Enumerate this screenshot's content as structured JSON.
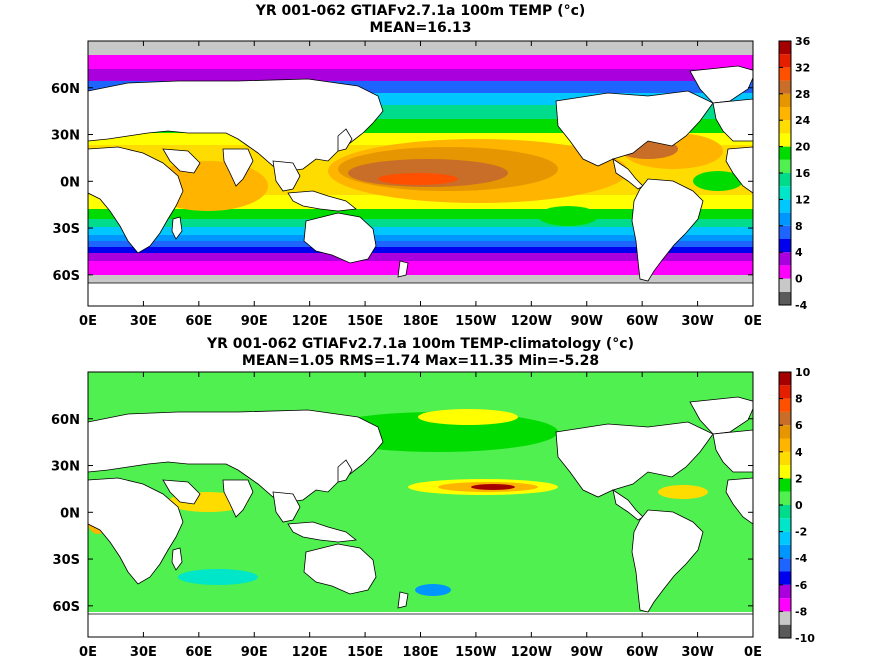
{
  "chart_data": [
    {
      "type": "heatmap",
      "title": "YR 001-062 GTIAFv2.7.1a 100m TEMP",
      "units": "(°c)",
      "subtitle": "MEAN=16.13",
      "x_ticks": [
        "0E",
        "30E",
        "60E",
        "90E",
        "120E",
        "150E",
        "180E",
        "150W",
        "120W",
        "90W",
        "60W",
        "30W",
        "0E"
      ],
      "y_ticks": [
        "60N",
        "30N",
        "0N",
        "30S",
        "60S"
      ],
      "xlim": [
        0,
        360
      ],
      "ylim": [
        -80,
        90
      ],
      "colorbar": {
        "ticks": [
          "36",
          "32",
          "28",
          "24",
          "20",
          "16",
          "12",
          "8",
          "4",
          "0",
          "-4"
        ],
        "range": [
          -4,
          36
        ],
        "bins": [
          {
            "from": -4,
            "to": -2,
            "color": "#5a5a5a"
          },
          {
            "from": -2,
            "to": 0,
            "color": "#c8c8c8"
          },
          {
            "from": 0,
            "to": 2,
            "color": "#ff00ff"
          },
          {
            "from": 2,
            "to": 4,
            "color": "#aa00dd"
          },
          {
            "from": 4,
            "to": 6,
            "color": "#0000ee"
          },
          {
            "from": 6,
            "to": 8,
            "color": "#1e64ff"
          },
          {
            "from": 8,
            "to": 10,
            "color": "#0096ff"
          },
          {
            "from": 10,
            "to": 12,
            "color": "#00c8ff"
          },
          {
            "from": 12,
            "to": 14,
            "color": "#00e6c8"
          },
          {
            "from": 14,
            "to": 16,
            "color": "#00dc8c"
          },
          {
            "from": 16,
            "to": 18,
            "color": "#50f050"
          },
          {
            "from": 18,
            "to": 20,
            "color": "#00dc00"
          },
          {
            "from": 20,
            "to": 22,
            "color": "#ffff00"
          },
          {
            "from": 22,
            "to": 24,
            "color": "#ffdc00"
          },
          {
            "from": 24,
            "to": 26,
            "color": "#ffb400"
          },
          {
            "from": 26,
            "to": 28,
            "color": "#e69600"
          },
          {
            "from": 28,
            "to": 30,
            "color": "#c86e28"
          },
          {
            "from": 30,
            "to": 32,
            "color": "#ff5000"
          },
          {
            "from": 32,
            "to": 34,
            "color": "#e61e00"
          },
          {
            "from": 34,
            "to": 36,
            "color": "#a50000"
          }
        ]
      }
    },
    {
      "type": "heatmap",
      "title": "YR 001-062 GTIAFv2.7.1a 100m TEMP-climatology",
      "units": "(°c)",
      "subtitle": "MEAN=1.05   RMS=1.74   Max=11.35   Min=-5.28",
      "stats": {
        "mean": 1.05,
        "rms": 1.74,
        "max": 11.35,
        "min": -5.28
      },
      "x_ticks": [
        "0E",
        "30E",
        "60E",
        "90E",
        "120E",
        "150E",
        "180E",
        "150W",
        "120W",
        "90W",
        "60W",
        "30W",
        "0E"
      ],
      "y_ticks": [
        "60N",
        "30N",
        "0N",
        "30S",
        "60S"
      ],
      "xlim": [
        0,
        360
      ],
      "ylim": [
        -80,
        90
      ],
      "colorbar": {
        "ticks": [
          "10",
          "8",
          "6",
          "4",
          "2",
          "0",
          "-2",
          "-4",
          "-6",
          "-8",
          "-10"
        ],
        "range": [
          -10,
          10
        ],
        "bins": [
          {
            "from": -10,
            "to": -9,
            "color": "#5a5a5a"
          },
          {
            "from": -9,
            "to": -8,
            "color": "#c8c8c8"
          },
          {
            "from": -8,
            "to": -7,
            "color": "#ff00ff"
          },
          {
            "from": -7,
            "to": -6,
            "color": "#aa00dd"
          },
          {
            "from": -6,
            "to": -5,
            "color": "#0000ee"
          },
          {
            "from": -5,
            "to": -4,
            "color": "#1e64ff"
          },
          {
            "from": -4,
            "to": -3,
            "color": "#0096ff"
          },
          {
            "from": -3,
            "to": -2,
            "color": "#00c8ff"
          },
          {
            "from": -2,
            "to": -1,
            "color": "#00e6c8"
          },
          {
            "from": -1,
            "to": 0,
            "color": "#00dc8c"
          },
          {
            "from": 0,
            "to": 1,
            "color": "#50f050"
          },
          {
            "from": 1,
            "to": 2,
            "color": "#00dc00"
          },
          {
            "from": 2,
            "to": 3,
            "color": "#ffff00"
          },
          {
            "from": 3,
            "to": 4,
            "color": "#ffdc00"
          },
          {
            "from": 4,
            "to": 5,
            "color": "#ffb400"
          },
          {
            "from": 5,
            "to": 6,
            "color": "#e69600"
          },
          {
            "from": 6,
            "to": 7,
            "color": "#c86e28"
          },
          {
            "from": 7,
            "to": 8,
            "color": "#ff5000"
          },
          {
            "from": 8,
            "to": 9,
            "color": "#e61e00"
          },
          {
            "from": 9,
            "to": 10,
            "color": "#a50000"
          }
        ]
      }
    }
  ]
}
